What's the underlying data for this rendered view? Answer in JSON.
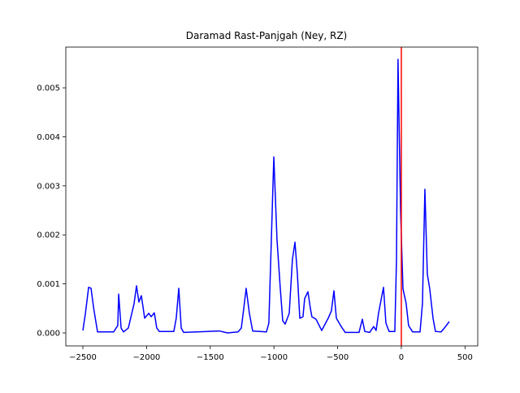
{
  "chart_data": {
    "type": "line",
    "title": "Daramad Rast-Panjgah (Ney, RZ)",
    "xlim": [
      -2634,
      600
    ],
    "ylim": [
      -0.000265,
      0.00583
    ],
    "xticks": [
      {
        "value": -2500,
        "label": "−2500"
      },
      {
        "value": -2000,
        "label": "−2000"
      },
      {
        "value": -1500,
        "label": "−1500"
      },
      {
        "value": -1000,
        "label": "−1000"
      },
      {
        "value": -500,
        "label": "−500"
      },
      0,
      500
    ],
    "yticks": [
      {
        "value": 0,
        "label": "0.000"
      },
      {
        "value": 0.001,
        "label": "0.001"
      },
      {
        "value": 0.002,
        "label": "0.002"
      },
      {
        "value": 0.003,
        "label": "0.003"
      },
      {
        "value": 0.004,
        "label": "0.004"
      },
      {
        "value": 0.005,
        "label": "0.005"
      }
    ],
    "vline": {
      "x": 0,
      "color": "#ff0000"
    },
    "series": [
      {
        "color": "#0000ff",
        "x": [
          -2500,
          -2480,
          -2455,
          -2436,
          -2415,
          -2385,
          -2258,
          -2239,
          -2226,
          -2219,
          -2200,
          -2181,
          -2143,
          -2098,
          -2079,
          -2060,
          -2041,
          -2015,
          -1983,
          -1964,
          -1939,
          -1920,
          -1900,
          -1786,
          -1767,
          -1747,
          -1728,
          -1709,
          -1429,
          -1365,
          -1282,
          -1256,
          -1237,
          -1218,
          -1193,
          -1167,
          -1059,
          -1040,
          -1001,
          -976,
          -950,
          -931,
          -912,
          -880,
          -855,
          -835,
          -816,
          -797,
          -772,
          -759,
          -733,
          -714,
          -702,
          -670,
          -625,
          -574,
          -549,
          -529,
          -510,
          -472,
          -440,
          -332,
          -306,
          -287,
          -249,
          -217,
          -198,
          -179,
          -140,
          -121,
          -96,
          -51,
          -38,
          -26,
          -6,
          13,
          38,
          57,
          89,
          147,
          166,
          185,
          204,
          223,
          249,
          268,
          312,
          338,
          376
        ],
        "values": [
          5e-05,
          0.0004,
          0.00093,
          0.00091,
          0.0005,
          2e-05,
          2e-05,
          0.0001,
          0.00015,
          0.00079,
          0.0001,
          2e-05,
          0.0001,
          0.0006,
          0.00096,
          0.00063,
          0.00076,
          0.0003,
          0.0004,
          0.00033,
          0.00041,
          0.0001,
          3e-05,
          3e-05,
          0.0003,
          0.00091,
          0.0001,
          1e-05,
          4e-05,
          0.0,
          2e-05,
          0.0001,
          0.0005,
          0.00091,
          0.0004,
          4e-05,
          2e-05,
          0.0002,
          0.00359,
          0.0019,
          0.0009,
          0.00025,
          0.00018,
          0.0004,
          0.0015,
          0.00185,
          0.0012,
          0.0003,
          0.00033,
          0.0007,
          0.00084,
          0.0005,
          0.00033,
          0.00028,
          5e-05,
          0.0003,
          0.00045,
          0.00086,
          0.0003,
          0.00013,
          1e-05,
          1e-05,
          0.00028,
          3e-05,
          1e-05,
          0.00013,
          5e-05,
          0.0004,
          0.00093,
          0.0002,
          3e-05,
          3e-05,
          0.0015,
          0.00558,
          0.0025,
          0.0009,
          0.0006,
          0.00015,
          2e-05,
          2e-05,
          0.0006,
          0.00293,
          0.0012,
          0.0009,
          0.0003,
          3e-05,
          2e-05,
          0.0001,
          0.00023
        ]
      }
    ]
  }
}
